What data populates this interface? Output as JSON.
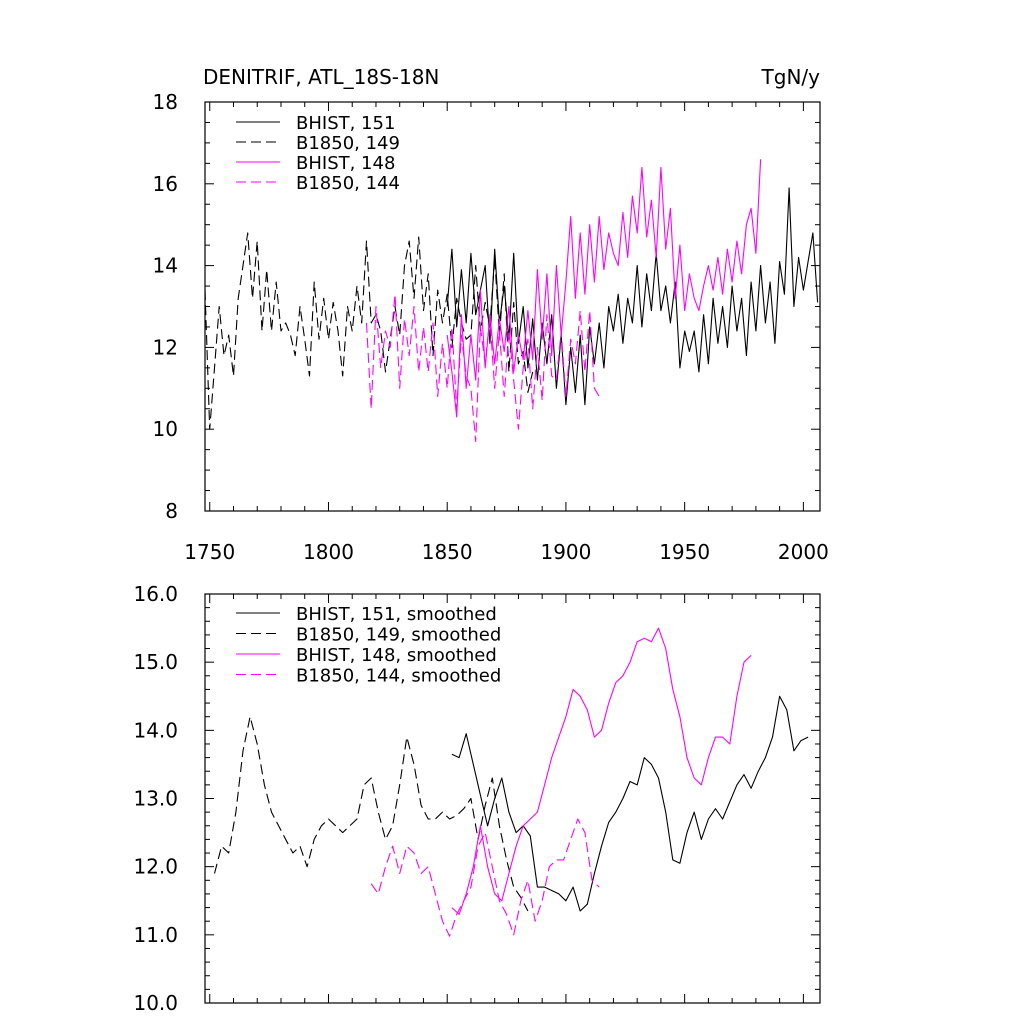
{
  "chart_data": [
    {
      "type": "line",
      "title": "DENITRIF, ATL_18S-18N",
      "units": "TgN/y",
      "xlabel": "",
      "ylabel": "",
      "xlim": [
        1748,
        2007
      ],
      "ylim": [
        8,
        18
      ],
      "xticks": [
        1750,
        1800,
        1850,
        1900,
        1950,
        2000
      ],
      "xtick_labels": [
        "1750",
        "1800",
        "1850",
        "1900",
        "1950",
        "2000"
      ],
      "yticks": [
        8,
        10,
        12,
        14,
        16,
        18
      ],
      "ytick_labels": [
        "8",
        "10",
        "12",
        "14",
        "16",
        "18"
      ],
      "legend_position": "top-left",
      "series": [
        {
          "name": "BHIST, 151",
          "color": "#000000",
          "dash": "solid",
          "x": [
            1850,
            1852,
            1854,
            1856,
            1858,
            1860,
            1862,
            1864,
            1866,
            1868,
            1870,
            1872,
            1874,
            1876,
            1878,
            1880,
            1882,
            1884,
            1886,
            1888,
            1890,
            1892,
            1894,
            1896,
            1898,
            1900,
            1902,
            1904,
            1906,
            1908,
            1910,
            1912,
            1914,
            1916,
            1918,
            1920,
            1922,
            1924,
            1926,
            1928,
            1930,
            1932,
            1934,
            1936,
            1938,
            1940,
            1942,
            1944,
            1946,
            1948,
            1950,
            1952,
            1954,
            1956,
            1958,
            1960,
            1962,
            1964,
            1966,
            1968,
            1970,
            1972,
            1974,
            1976,
            1978,
            1980,
            1982,
            1984,
            1986,
            1988,
            1990,
            1992,
            1994,
            1996,
            1998,
            2000,
            2002,
            2004,
            2006
          ],
          "values": [
            13.0,
            14.4,
            12.5,
            13.9,
            12.6,
            14.3,
            12.8,
            13.4,
            14.0,
            12.1,
            14.4,
            12.6,
            13.5,
            12.2,
            14.3,
            12.1,
            13.0,
            11.5,
            12.7,
            11.2,
            12.6,
            11.6,
            12.8,
            11.0,
            12.3,
            10.6,
            12.0,
            10.9,
            12.3,
            10.6,
            12.5,
            11.6,
            12.6,
            11.5,
            13.0,
            12.4,
            13.3,
            12.1,
            13.2,
            12.6,
            14.0,
            12.5,
            13.8,
            12.9,
            14.3,
            12.9,
            13.5,
            12.6,
            13.6,
            11.5,
            12.4,
            11.9,
            12.4,
            11.4,
            12.8,
            11.6,
            13.2,
            12.1,
            13.0,
            12.0,
            13.5,
            12.4,
            13.2,
            11.8,
            13.6,
            12.4,
            14.0,
            12.6,
            13.6,
            12.1,
            14.1,
            13.3,
            15.9,
            13.0,
            14.2,
            13.4,
            14.1,
            14.8,
            13.1
          ]
        },
        {
          "name": "B1850, 149",
          "color": "#000000",
          "dash": "dashed",
          "x": [
            1748,
            1750,
            1752,
            1754,
            1756,
            1758,
            1760,
            1762,
            1764,
            1766,
            1768,
            1770,
            1772,
            1774,
            1776,
            1778,
            1780,
            1782,
            1784,
            1786,
            1788,
            1790,
            1792,
            1794,
            1796,
            1798,
            1800,
            1802,
            1804,
            1806,
            1808,
            1810,
            1812,
            1814,
            1816,
            1818,
            1820,
            1822,
            1824,
            1826,
            1828,
            1830,
            1832,
            1834,
            1836,
            1838,
            1840,
            1842,
            1844,
            1846,
            1848,
            1850,
            1852,
            1854,
            1856,
            1858,
            1860,
            1862,
            1864,
            1866,
            1868,
            1870,
            1872,
            1874,
            1876,
            1878,
            1880,
            1882,
            1884,
            1886
          ],
          "values": [
            13.4,
            10.0,
            11.5,
            13.0,
            11.8,
            12.3,
            11.3,
            13.2,
            14.0,
            14.8,
            13.2,
            14.6,
            12.4,
            13.9,
            12.4,
            13.6,
            12.4,
            12.6,
            12.3,
            11.8,
            13.0,
            12.2,
            11.3,
            13.6,
            12.2,
            13.2,
            12.2,
            13.1,
            12.4,
            11.3,
            13.0,
            12.4,
            13.5,
            12.6,
            14.6,
            12.6,
            12.8,
            12.4,
            11.4,
            12.2,
            13.0,
            12.3,
            14.0,
            14.6,
            13.2,
            14.7,
            12.9,
            13.8,
            11.8,
            13.4,
            12.6,
            13.3,
            12.0,
            13.2,
            12.6,
            12.2,
            12.3,
            14.0,
            12.4,
            13.1,
            12.5,
            14.2,
            12.3,
            13.8,
            11.4,
            13.1,
            11.6,
            11.9,
            10.9,
            11.4
          ]
        },
        {
          "name": "BHIST, 148",
          "color": "#ff00ff",
          "dash": "solid",
          "x": [
            1850,
            1852,
            1854,
            1856,
            1858,
            1860,
            1862,
            1864,
            1866,
            1868,
            1870,
            1872,
            1874,
            1876,
            1878,
            1880,
            1882,
            1884,
            1886,
            1888,
            1890,
            1892,
            1894,
            1896,
            1898,
            1900,
            1902,
            1904,
            1906,
            1908,
            1910,
            1912,
            1914,
            1916,
            1918,
            1920,
            1922,
            1924,
            1926,
            1928,
            1930,
            1932,
            1934,
            1936,
            1938,
            1940,
            1942,
            1944,
            1946,
            1948,
            1950,
            1952,
            1954,
            1956,
            1958,
            1960,
            1962,
            1964,
            1966,
            1968,
            1970,
            1972,
            1974,
            1976,
            1978,
            1980,
            1982
          ],
          "values": [
            12.3,
            11.4,
            10.3,
            12.8,
            11.0,
            12.3,
            11.2,
            13.4,
            11.5,
            12.8,
            11.6,
            12.7,
            11.9,
            13.0,
            11.4,
            12.3,
            11.7,
            12.9,
            11.7,
            13.9,
            12.2,
            13.8,
            11.8,
            14.0,
            12.3,
            13.6,
            15.2,
            13.2,
            14.8,
            13.3,
            15.0,
            13.6,
            15.2,
            13.9,
            14.8,
            14.3,
            14.0,
            15.3,
            14.2,
            15.7,
            14.8,
            16.4,
            14.7,
            15.6,
            14.2,
            16.4,
            14.4,
            15.4,
            13.2,
            14.5,
            12.9,
            13.8,
            13.2,
            12.9,
            13.5,
            14.0,
            13.4,
            14.2,
            13.3,
            14.4,
            13.6,
            14.6,
            13.8,
            15.0,
            15.4,
            14.3,
            16.6
          ]
        },
        {
          "name": "B1850, 144",
          "color": "#ff00ff",
          "dash": "dashed",
          "x": [
            1816,
            1818,
            1820,
            1822,
            1824,
            1826,
            1828,
            1830,
            1832,
            1834,
            1836,
            1838,
            1840,
            1842,
            1844,
            1846,
            1848,
            1850,
            1852,
            1854,
            1856,
            1858,
            1860,
            1862,
            1864,
            1866,
            1868,
            1870,
            1872,
            1874,
            1876,
            1878,
            1880,
            1882,
            1884,
            1886,
            1888,
            1890,
            1892,
            1894,
            1896,
            1898,
            1900,
            1902,
            1904,
            1906,
            1908,
            1910,
            1912,
            1914
          ],
          "values": [
            12.6,
            10.5,
            13.0,
            11.5,
            12.4,
            12.0,
            13.3,
            11.0,
            12.7,
            11.8,
            13.0,
            11.4,
            12.5,
            11.4,
            12.6,
            10.8,
            12.1,
            11.0,
            12.5,
            10.5,
            12.3,
            11.3,
            11.0,
            9.7,
            12.5,
            11.6,
            12.7,
            11.0,
            12.4,
            10.8,
            12.4,
            11.2,
            10.0,
            11.5,
            12.2,
            10.5,
            12.0,
            10.7,
            12.8,
            11.3,
            11.2,
            12.4,
            10.8,
            12.2,
            11.6,
            12.9,
            11.4,
            12.9,
            11.0,
            10.8
          ]
        }
      ]
    },
    {
      "type": "line",
      "title": "",
      "units": "",
      "xlabel": "",
      "ylabel": "",
      "xlim": [
        1748,
        2007
      ],
      "ylim": [
        10.0,
        16.0
      ],
      "xticks": [
        1750,
        1800,
        1850,
        1900,
        1950,
        2000
      ],
      "xtick_labels": [],
      "yticks": [
        10.0,
        11.0,
        12.0,
        13.0,
        14.0,
        15.0,
        16.0
      ],
      "ytick_labels": [
        "10.0",
        "11.0",
        "12.0",
        "13.0",
        "14.0",
        "15.0",
        "16.0"
      ],
      "legend_position": "top-left",
      "series": [
        {
          "name": "BHIST, 151, smoothed",
          "color": "#000000",
          "dash": "solid",
          "x": [
            1852,
            1855,
            1858,
            1861,
            1864,
            1867,
            1870,
            1873,
            1876,
            1879,
            1882,
            1885,
            1888,
            1891,
            1894,
            1897,
            1900,
            1903,
            1906,
            1909,
            1912,
            1915,
            1918,
            1921,
            1924,
            1927,
            1930,
            1933,
            1936,
            1939,
            1942,
            1945,
            1948,
            1951,
            1954,
            1957,
            1960,
            1963,
            1966,
            1969,
            1972,
            1975,
            1978,
            1981,
            1984,
            1987,
            1990,
            1993,
            1996,
            1999,
            2002
          ],
          "values": [
            13.65,
            13.6,
            13.95,
            13.5,
            13.05,
            12.6,
            13.0,
            13.3,
            12.8,
            12.5,
            12.6,
            12.45,
            11.7,
            11.7,
            11.65,
            11.6,
            11.5,
            11.7,
            11.35,
            11.45,
            11.9,
            12.3,
            12.65,
            12.8,
            13.0,
            13.25,
            13.2,
            13.6,
            13.5,
            13.3,
            12.8,
            12.1,
            12.05,
            12.5,
            12.8,
            12.4,
            12.7,
            12.85,
            12.7,
            12.95,
            13.2,
            13.35,
            13.15,
            13.4,
            13.6,
            13.9,
            14.5,
            14.3,
            13.7,
            13.85,
            13.9
          ]
        },
        {
          "name": "B1850, 149, smoothed",
          "color": "#000000",
          "dash": "dashed",
          "x": [
            1752,
            1755,
            1758,
            1761,
            1764,
            1767,
            1770,
            1773,
            1776,
            1779,
            1782,
            1785,
            1788,
            1791,
            1794,
            1797,
            1800,
            1803,
            1806,
            1809,
            1812,
            1815,
            1818,
            1821,
            1824,
            1827,
            1830,
            1833,
            1836,
            1839,
            1842,
            1845,
            1848,
            1851,
            1854,
            1857,
            1860,
            1863,
            1866,
            1869,
            1872,
            1875,
            1878,
            1881,
            1884
          ],
          "values": [
            11.9,
            12.3,
            12.2,
            12.8,
            13.7,
            14.2,
            13.8,
            13.2,
            12.8,
            12.6,
            12.4,
            12.2,
            12.3,
            12.0,
            12.4,
            12.6,
            12.7,
            12.6,
            12.5,
            12.6,
            12.7,
            13.2,
            13.3,
            12.8,
            12.4,
            12.6,
            13.2,
            13.9,
            13.5,
            12.9,
            12.7,
            12.7,
            12.8,
            12.7,
            12.75,
            12.85,
            13.0,
            12.4,
            12.9,
            13.3,
            12.6,
            12.1,
            11.7,
            11.55,
            11.35
          ]
        },
        {
          "name": "BHIST, 148, smoothed",
          "color": "#ff00ff",
          "dash": "solid",
          "x": [
            1852,
            1855,
            1858,
            1861,
            1864,
            1867,
            1870,
            1873,
            1876,
            1879,
            1882,
            1885,
            1888,
            1891,
            1894,
            1897,
            1900,
            1903,
            1906,
            1909,
            1912,
            1915,
            1918,
            1921,
            1924,
            1927,
            1930,
            1933,
            1936,
            1939,
            1942,
            1945,
            1948,
            1951,
            1954,
            1957,
            1960,
            1963,
            1966,
            1969,
            1972,
            1975,
            1978
          ],
          "values": [
            11.4,
            11.3,
            11.6,
            12.0,
            12.6,
            12.0,
            11.6,
            11.5,
            11.9,
            12.3,
            12.6,
            12.7,
            12.8,
            13.2,
            13.6,
            13.9,
            14.2,
            14.6,
            14.5,
            14.3,
            13.9,
            14.0,
            14.4,
            14.7,
            14.8,
            15.0,
            15.3,
            15.35,
            15.3,
            15.5,
            15.2,
            14.6,
            14.2,
            13.6,
            13.3,
            13.2,
            13.6,
            13.9,
            13.9,
            13.8,
            14.5,
            15.0,
            15.1
          ]
        },
        {
          "name": "B1850, 144, smoothed",
          "color": "#ff00ff",
          "dash": "dashed",
          "x": [
            1818,
            1821,
            1824,
            1827,
            1830,
            1833,
            1836,
            1839,
            1842,
            1845,
            1848,
            1851,
            1854,
            1857,
            1860,
            1863,
            1866,
            1869,
            1872,
            1875,
            1878,
            1881,
            1884,
            1887,
            1890,
            1893,
            1896,
            1899,
            1902,
            1905,
            1908,
            1911,
            1914
          ],
          "values": [
            11.75,
            11.6,
            12.0,
            12.3,
            11.9,
            12.3,
            12.2,
            11.9,
            12.0,
            11.6,
            11.2,
            10.98,
            11.3,
            11.5,
            11.7,
            12.3,
            12.5,
            12.0,
            11.5,
            11.3,
            11.0,
            11.5,
            11.8,
            11.2,
            11.5,
            12.0,
            12.1,
            12.1,
            12.4,
            12.7,
            12.5,
            11.8,
            11.7
          ]
        }
      ]
    }
  ]
}
